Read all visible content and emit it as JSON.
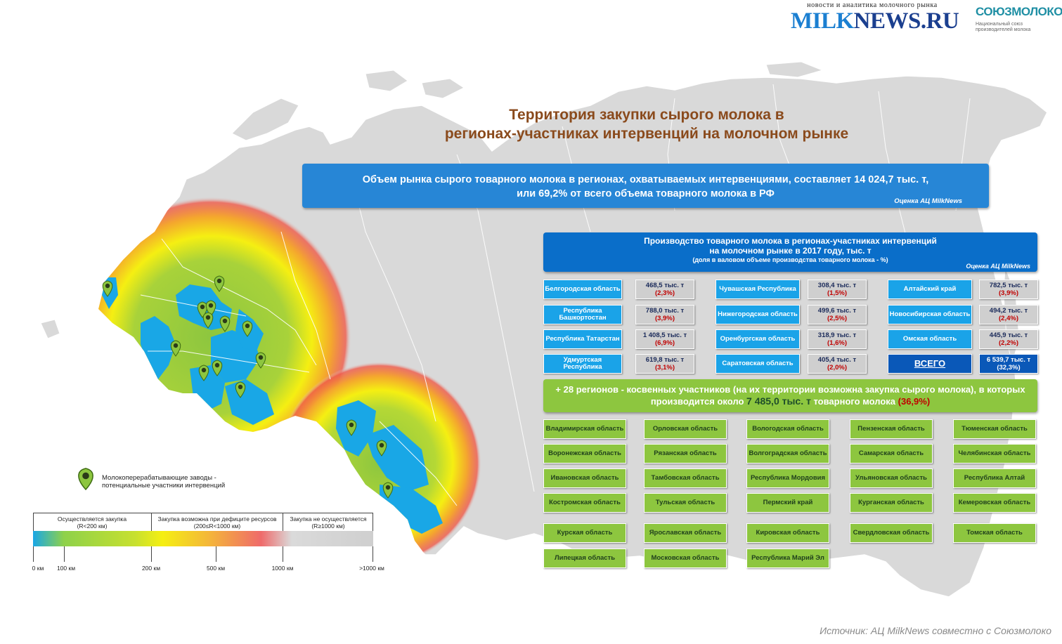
{
  "header": {
    "tagline": "новости и аналитика молочного рынка",
    "logo_part1": "MILK",
    "logo_part2": "NEWS.RU",
    "soyuz_name": "СОЮЗМОЛОКО",
    "soyuz_sub": "Национальный союз производителей молока"
  },
  "title_line1": "Территория закупки сырого молока в",
  "title_line2": "регионах-участниках интервенций на молочном рынке",
  "summary": {
    "line1": "Объем рынка сырого товарного молока в регионах, охватываемых интервенциями, составляет 14 024,7 тыс. т,",
    "line2": "или 69,2% от всего объема товарного молока в РФ",
    "source": "Оценка  АЦ MilkNews"
  },
  "production": {
    "line1": "Производство товарного молока в регионах-участниках интервенций",
    "line2": "на молочном рынке в 2017 году, тыс. т",
    "line3": "(доля в валовом объеме производства товарного молока - %)",
    "source": "Оценка  АЦ MilkNews",
    "regions": [
      {
        "name": "Белгородская область",
        "value": "468,5 тыс. т",
        "pct": "(2,3%)"
      },
      {
        "name": "Республика Башкортостан",
        "value": "788,0 тыс. т",
        "pct": "(3,9%)"
      },
      {
        "name": "Республика Татарстан",
        "value": "1 408,5 тыс. т",
        "pct": "(6,9%)"
      },
      {
        "name": "Удмуртская Республика",
        "value": "619,8 тыс. т",
        "pct": "(3,1%)"
      },
      {
        "name": "Чувашская Республика",
        "value": "308,4 тыс. т",
        "pct": "(1,5%)"
      },
      {
        "name": "Нижегородская область",
        "value": "499,6 тыс. т",
        "pct": "(2,5%)"
      },
      {
        "name": "Оренбургская область",
        "value": "318,9 тыс. т",
        "pct": "(1,6%)"
      },
      {
        "name": "Саратовская область",
        "value": "405,4 тыс. т",
        "pct": "(2,0%)"
      },
      {
        "name": "Алтайский край",
        "value": "782,5 тыс. т",
        "pct": "(3,9%)"
      },
      {
        "name": "Новосибирская область",
        "value": "494,2 тыс. т",
        "pct": "(2,4%)"
      },
      {
        "name": "Омская область",
        "value": "445,9 тыс. т",
        "pct": "(2,2%)"
      }
    ],
    "total": {
      "name": "ВСЕГО",
      "value": "6 539,7 тыс. т",
      "pct": "(32,3%)"
    }
  },
  "indirect": {
    "part1": "+ 28 регионов",
    "part2": " - косвенных участников (на их территории возможна закупка сырого молока), в которых",
    "part3": "производится около ",
    "amount": "7 485,0 тыс. т",
    "part4": " товарного молока ",
    "pct": "(36,9%)",
    "regions": [
      [
        "Владимирская область",
        "Воронежская область",
        "Ивановская область",
        "Костромская область",
        "Курская область",
        "Липецкая область"
      ],
      [
        "Орловская область",
        "Рязанская  область",
        "Тамбовская область",
        "Тульская область",
        "Ярославская область",
        "Московская область"
      ],
      [
        "Вологодская область",
        "Волгоградская область",
        "Республика Мордовия",
        "Пермский край",
        "Кировская область",
        "Республика Марий Эл"
      ],
      [
        "Пензенская область",
        "Самарская область",
        "Ульяновская область",
        "Курганская область",
        "Свердловская область"
      ],
      [
        "Тюменская область",
        "Челябинская область",
        "Республика Алтай",
        "Кемеровская область",
        "Томская область"
      ]
    ]
  },
  "legend": {
    "pin_label_line1": "Молокоперерабатывающие заводы -",
    "pin_label_line2": "потенциальные участники интервенций",
    "cat1_line1": "Осуществляется закупка",
    "cat1_line2": "(R<200 км)",
    "cat2_line1": "Закупка возможна при дефиците ресурсов",
    "cat2_line2": "(200≤R<1000 км)",
    "cat3_line1": "Закупка не осуществляется",
    "cat3_line2": "(R≥1000 км)",
    "ticks": [
      "0 км",
      "100 км",
      "200 км",
      "500 км",
      "1000 км",
      ">1000 км"
    ]
  },
  "source": "Источник: АЦ MilkNews совместно с Союзмолоко",
  "colors": {
    "land": "#d9d9d9",
    "zone_direct": "#19a7e6",
    "zone_near": "#8dc63f",
    "zone_far": "#f5ef12",
    "zone_edge": "#ef5a4a",
    "pin": "#8dc63f"
  }
}
